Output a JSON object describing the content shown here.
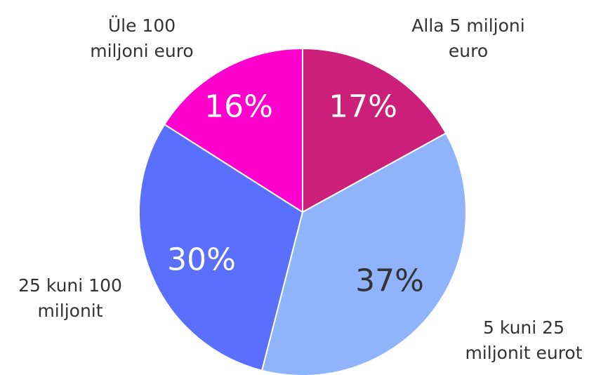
{
  "chart_data": {
    "type": "pie",
    "categories": [
      "Alla 5 miljoni euro",
      "5 kuni 25 miljonit eurot",
      "25 kuni 100 miljonit",
      "Üle 100 miljoni euro"
    ],
    "values": [
      17,
      37,
      30,
      16
    ],
    "value_labels": [
      "17%",
      "37%",
      "30%",
      "16%"
    ],
    "colors": [
      "#cc1f7a",
      "#8fb4fc",
      "#5b6ffd",
      "#ff00cc"
    ]
  }
}
